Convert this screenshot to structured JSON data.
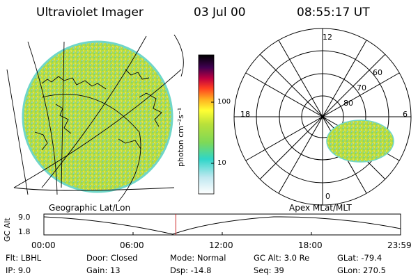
{
  "header": {
    "instrument": "Ultraviolet Imager",
    "date": "03 Jul 00",
    "time": "08:55:17 UT"
  },
  "colorbar": {
    "unit_label": "photon cm⁻²s⁻¹",
    "ticks": [
      "100",
      "10"
    ]
  },
  "panels": {
    "left_label": "Geographic Lat/Lon",
    "right_label": "Apex MLat/MLT"
  },
  "polar": {
    "mlt_labels": {
      "top": "12",
      "left": "18",
      "right": "6",
      "bottom": "0"
    },
    "mlat_labels": [
      "60",
      "70",
      "80"
    ]
  },
  "timeline": {
    "ylabel": "GC Alt",
    "y_ticks": [
      "9.0",
      "1.8"
    ],
    "x_ticks": [
      "00:00",
      "06:00",
      "12:00",
      "18:00",
      "23:59"
    ],
    "current_time_fraction": 0.37
  },
  "info": {
    "row1": {
      "flt": "Flt: LBHL",
      "door": "Door: Closed",
      "mode": "Mode: Normal",
      "gcalt": "GC Alt: 3.0 Re",
      "glat": "GLat: -79.4"
    },
    "row2": {
      "ip": "IP:  9.0",
      "gain": "Gain: 13",
      "dsp": "Dsp:  -14.8",
      "seq": "Seq: 39",
      "glon": "GLon: 270.5"
    }
  },
  "colors": {
    "aurora_main": "#a9d93a",
    "aurora_alt": "#d9e04a",
    "aurora_cyan": "#6fd6c8",
    "timeline_marker": "#cc2222"
  }
}
